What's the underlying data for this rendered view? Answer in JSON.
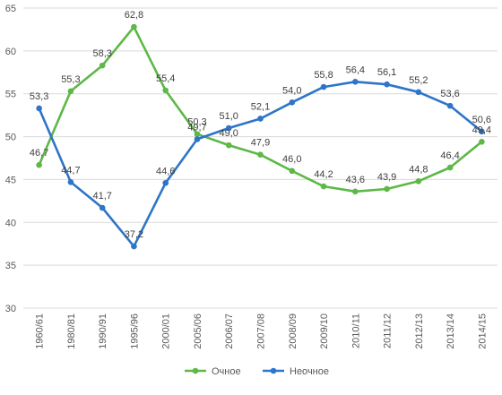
{
  "chart_data": {
    "type": "line",
    "title": "",
    "xlabel": "",
    "ylabel": "",
    "ylim": [
      30,
      65
    ],
    "yticks": [
      "30",
      "35",
      "40",
      "45",
      "50",
      "55",
      "60",
      "65"
    ],
    "grid": true,
    "legend_position": "bottom",
    "categories": [
      "1960/61",
      "1980/81",
      "1990/91",
      "1995/96",
      "2000/01",
      "2005/06",
      "2006/07",
      "2007/08",
      "2008/09",
      "2009/10",
      "2010/11",
      "2011/12",
      "2012/13",
      "2013/14",
      "2014/15"
    ],
    "series": [
      {
        "name": "Очное",
        "color": "#5DB847",
        "values": [
          46.7,
          55.3,
          58.3,
          62.8,
          55.4,
          50.3,
          49.0,
          47.9,
          46.0,
          44.2,
          43.6,
          43.9,
          44.8,
          46.4,
          49.4
        ],
        "labels": [
          "46,7",
          "55,3",
          "58,3",
          "62,8",
          "55,4",
          "50,3",
          "49,0",
          "47,9",
          "46,0",
          "44,2",
          "43,6",
          "43,9",
          "44,8",
          "46,4",
          "49,4"
        ]
      },
      {
        "name": "Неочное",
        "color": "#2E75C8",
        "values": [
          53.3,
          44.7,
          41.7,
          37.2,
          44.6,
          49.7,
          51.0,
          52.1,
          54.0,
          55.8,
          56.4,
          56.1,
          55.2,
          53.6,
          50.6
        ],
        "labels": [
          "53,3",
          "44,7",
          "41,7",
          "37,2",
          "44,6",
          "49,7",
          "51,0",
          "52,1",
          "54,0",
          "55,8",
          "56,4",
          "56,1",
          "55,2",
          "53,6",
          "50,6"
        ]
      }
    ]
  }
}
